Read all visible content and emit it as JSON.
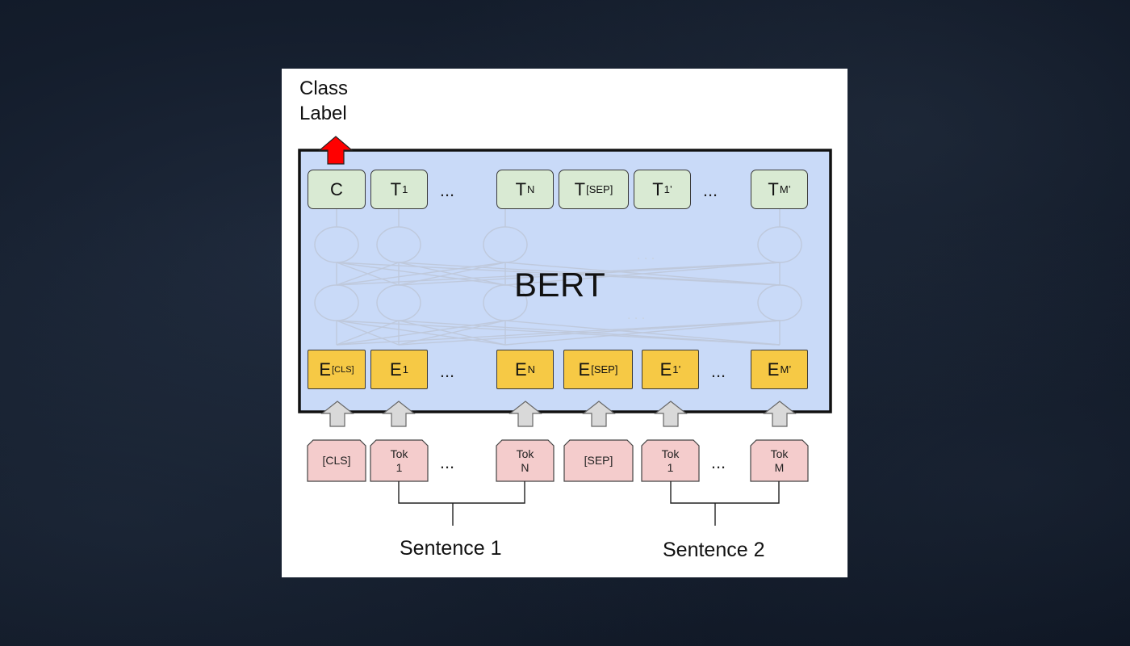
{
  "diagram": {
    "class_label_top": "Class",
    "class_label_bottom": "Label",
    "model_name": "BERT",
    "outputs": [
      {
        "main": "C",
        "sub": ""
      },
      {
        "main": "T",
        "sub": "1"
      },
      {
        "main": "T",
        "sub": "N"
      },
      {
        "main": "T",
        "sub": "[SEP]"
      },
      {
        "main": "T",
        "sub": "1’"
      },
      {
        "main": "T",
        "sub": "M’"
      }
    ],
    "embeddings": [
      {
        "main": "E",
        "sub": "[CLS]"
      },
      {
        "main": "E",
        "sub": "1"
      },
      {
        "main": "E",
        "sub": "N"
      },
      {
        "main": "E",
        "sub": "[SEP]"
      },
      {
        "main": "E",
        "sub": "1’"
      },
      {
        "main": "E",
        "sub": "M’"
      }
    ],
    "tokens": [
      "[CLS]",
      "Tok\n1",
      "Tok\nN",
      "[SEP]",
      "Tok\n1",
      "Tok\nM"
    ],
    "ellipsis": "...",
    "sentence_1": "Sentence 1",
    "sentence_2": "Sentence 2",
    "colors": {
      "bert_fill": "#c9daf8",
      "output_fill": "#d9ead3",
      "embedding_fill": "#f6c945",
      "token_fill": "#f4cccc",
      "arrow_gray": "#d9d9d9",
      "class_arrow": "#ff0000"
    }
  }
}
